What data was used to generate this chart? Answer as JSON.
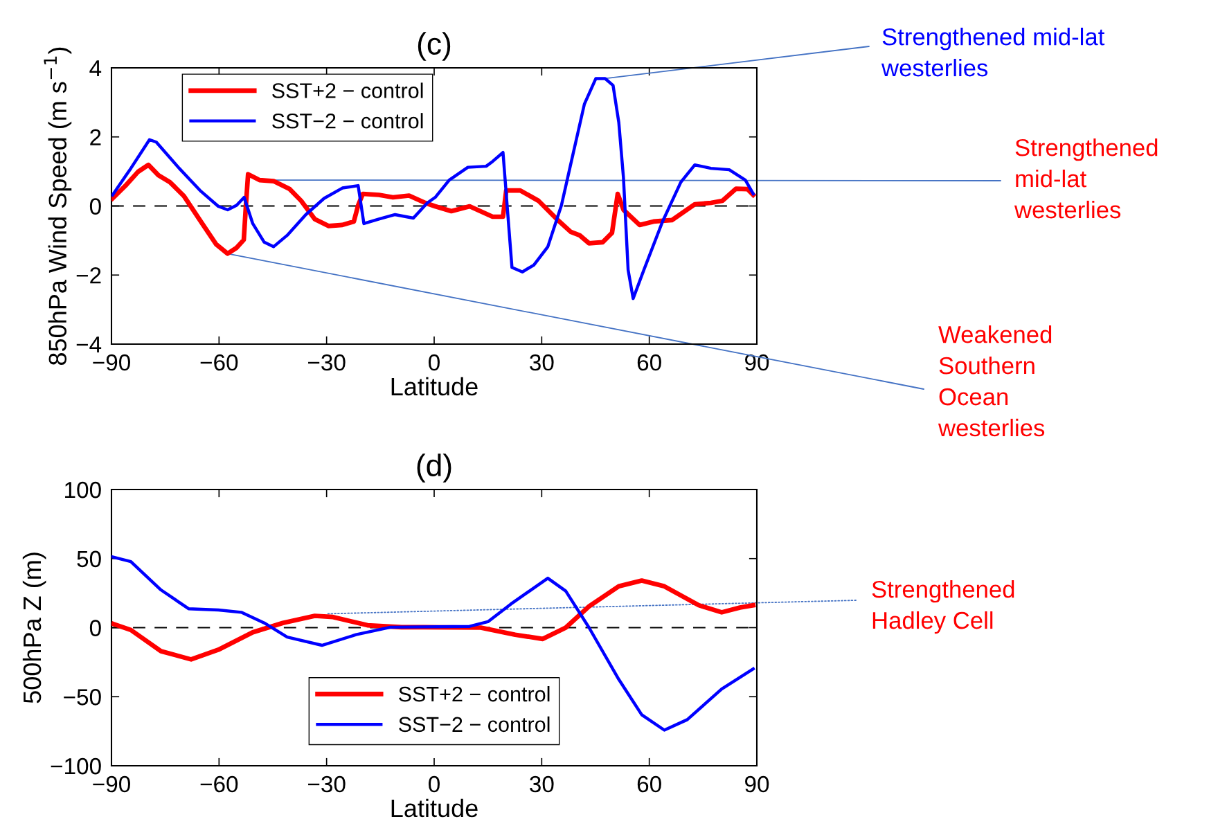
{
  "chart_data": [
    {
      "type": "line",
      "title": "(c)",
      "xlabel": "Latitude",
      "ylabel": "850hPa Wind Speed (m s$^{−1}$)",
      "xlim": [
        -90,
        90
      ],
      "xticks": [
        -90,
        -60,
        -30,
        0,
        30,
        60,
        90
      ],
      "ylim": [
        -4,
        4
      ],
      "yticks": [
        -4,
        -2,
        0,
        2,
        4
      ],
      "grid": false,
      "legend": "top left",
      "line_style": "solid",
      "marker": "none",
      "ref_lines": [
        {
          "axis": "y",
          "value": 0,
          "color": "#000000",
          "line_style": "dashed"
        }
      ],
      "series": [
        {
          "name": "SST+2 − control",
          "color": "#ff0000",
          "x": [
            -89.7,
            -85.8,
            -82.6,
            -79.7,
            -76.9,
            -73.7,
            -69.8,
            -64.7,
            -60.8,
            -57.6,
            -55.1,
            -53.1,
            -52.5,
            -51.9,
            -48.7,
            -44.8,
            -40.3,
            -37.1,
            -33.3,
            -29.4,
            -25.6,
            -22.4,
            -21.2,
            -19.9,
            -15.4,
            -11.5,
            -7.0,
            -2.5,
            0.3,
            4.8,
            9.9,
            16.3,
            19.2,
            20.1,
            24.0,
            29.1,
            34.2,
            38.1,
            40.6,
            43.2,
            47.0,
            49.6,
            51.2,
            52.8,
            57.3,
            61.2,
            66.3,
            72.7,
            77.2,
            80.4,
            84.2,
            87.4,
            89.0
          ],
          "values": [
            0.22,
            0.62,
            0.99,
            1.19,
            0.89,
            0.69,
            0.29,
            -0.51,
            -1.11,
            -1.38,
            -1.21,
            -0.98,
            0.02,
            0.92,
            0.75,
            0.72,
            0.49,
            0.15,
            -0.38,
            -0.58,
            -0.55,
            -0.45,
            0.02,
            0.35,
            0.32,
            0.25,
            0.3,
            0.09,
            -0.01,
            -0.15,
            -0.01,
            -0.31,
            -0.31,
            0.45,
            0.45,
            0.15,
            -0.38,
            -0.75,
            -0.85,
            -1.08,
            -1.05,
            -0.78,
            0.35,
            -0.11,
            -0.55,
            -0.45,
            -0.41,
            0.05,
            0.09,
            0.15,
            0.5,
            0.49,
            0.32
          ]
        },
        {
          "name": "SST−2 − control",
          "color": "#0000ff",
          "x": [
            -89.7,
            -84.6,
            -79.4,
            -77.5,
            -71.1,
            -65.3,
            -60.2,
            -57.6,
            -55.1,
            -53.0,
            -50.6,
            -47.4,
            -44.8,
            -41.0,
            -35.8,
            -30.7,
            -25.6,
            -21.2,
            -19.6,
            -15.4,
            -10.9,
            -5.8,
            -1.9,
            0.3,
            4.2,
            9.4,
            14.5,
            16.3,
            19.2,
            21.7,
            24.6,
            27.8,
            31.7,
            35.5,
            38.7,
            41.9,
            45.1,
            47.7,
            49.9,
            51.5,
            52.8,
            54.1,
            55.5,
            58.5,
            63.7,
            68.8,
            72.7,
            77.2,
            82.3,
            86.8,
            89.0
          ],
          "values": [
            0.32,
            1.09,
            1.92,
            1.85,
            1.09,
            0.45,
            -0.01,
            -0.11,
            0.02,
            0.25,
            -0.51,
            -1.05,
            -1.18,
            -0.85,
            -0.25,
            0.22,
            0.52,
            0.59,
            -0.51,
            -0.38,
            -0.25,
            -0.35,
            0.09,
            0.25,
            0.75,
            1.12,
            1.15,
            1.29,
            1.55,
            -1.78,
            -1.91,
            -1.71,
            -1.18,
            0.02,
            1.49,
            2.95,
            3.69,
            3.69,
            3.49,
            2.42,
            0.82,
            -1.85,
            -2.68,
            -1.85,
            -0.45,
            0.69,
            1.19,
            1.09,
            1.05,
            0.75,
            0.35
          ]
        }
      ],
      "annotations": [
        {
          "text": "Strengthened mid-lat\nwesterlies",
          "x": 47.7,
          "y": 3.69
        },
        {
          "text": "Strengthened\nmid-lat\nwesterlies",
          "x": -45,
          "y": 0.75
        },
        {
          "text": "Weakened\nSouthern\nOcean\nwesterlies",
          "x": -57.6,
          "y": -1.38
        }
      ]
    },
    {
      "type": "line",
      "title": "(d)",
      "xlabel": "Latitude",
      "ylabel": "500hPa Z (m)",
      "xlim": [
        -90,
        90
      ],
      "xticks": [
        -90,
        -60,
        -30,
        0,
        30,
        60,
        90
      ],
      "ylim": [
        -100,
        100
      ],
      "yticks": [
        -100,
        -50,
        0,
        50,
        100
      ],
      "grid": false,
      "legend": "bottom",
      "line_style": "solid",
      "marker": "none",
      "ref_lines": [
        {
          "axis": "y",
          "value": 0,
          "color": "#000000",
          "line_style": "dashed"
        }
      ],
      "series": [
        {
          "name": "SST+2 − control",
          "color": "#ff0000",
          "x": [
            -89.4,
            -84.6,
            -76.2,
            -67.8,
            -60.2,
            -50.6,
            -42.2,
            -33.3,
            -28.2,
            -18.6,
            -9.1,
            -2.9,
            13.0,
            22.6,
            30.3,
            36.7,
            43.2,
            51.5,
            57.9,
            64.2,
            73.8,
            80.2,
            85.3,
            89.0
          ],
          "values": [
            2.6,
            -1.7,
            -17,
            -23,
            -16,
            -3.4,
            3.4,
            8.5,
            7.7,
            1.7,
            0.3,
            0.3,
            0,
            -5.1,
            -8.2,
            0,
            15.4,
            29.9,
            34.1,
            29.9,
            16.2,
            11.1,
            14.5,
            16.2
          ]
        },
        {
          "name": "SST−2 − control",
          "color": "#0000ff",
          "x": [
            -89.7,
            -84.6,
            -76.2,
            -68.5,
            -60.2,
            -53.8,
            -47.4,
            -41.0,
            -31.3,
            -21.8,
            -12.2,
            9.9,
            15.0,
            21.4,
            31.7,
            36.7,
            43.2,
            51.5,
            57.9,
            64.2,
            70.6,
            80.2,
            89.0
          ],
          "values": [
            51.2,
            47.8,
            27.3,
            13.7,
            12.8,
            11.1,
            3.4,
            -6.8,
            -12.8,
            -5.1,
            0.3,
            0.9,
            4.3,
            17.1,
            35.8,
            26.5,
            0,
            -37.5,
            -63.1,
            -74.2,
            -66.6,
            -44.4,
            -29.9
          ]
        }
      ],
      "annotations": [
        {
          "text": "Strengthened\nHadley Cell",
          "x": -30,
          "y": 10
        }
      ]
    }
  ]
}
